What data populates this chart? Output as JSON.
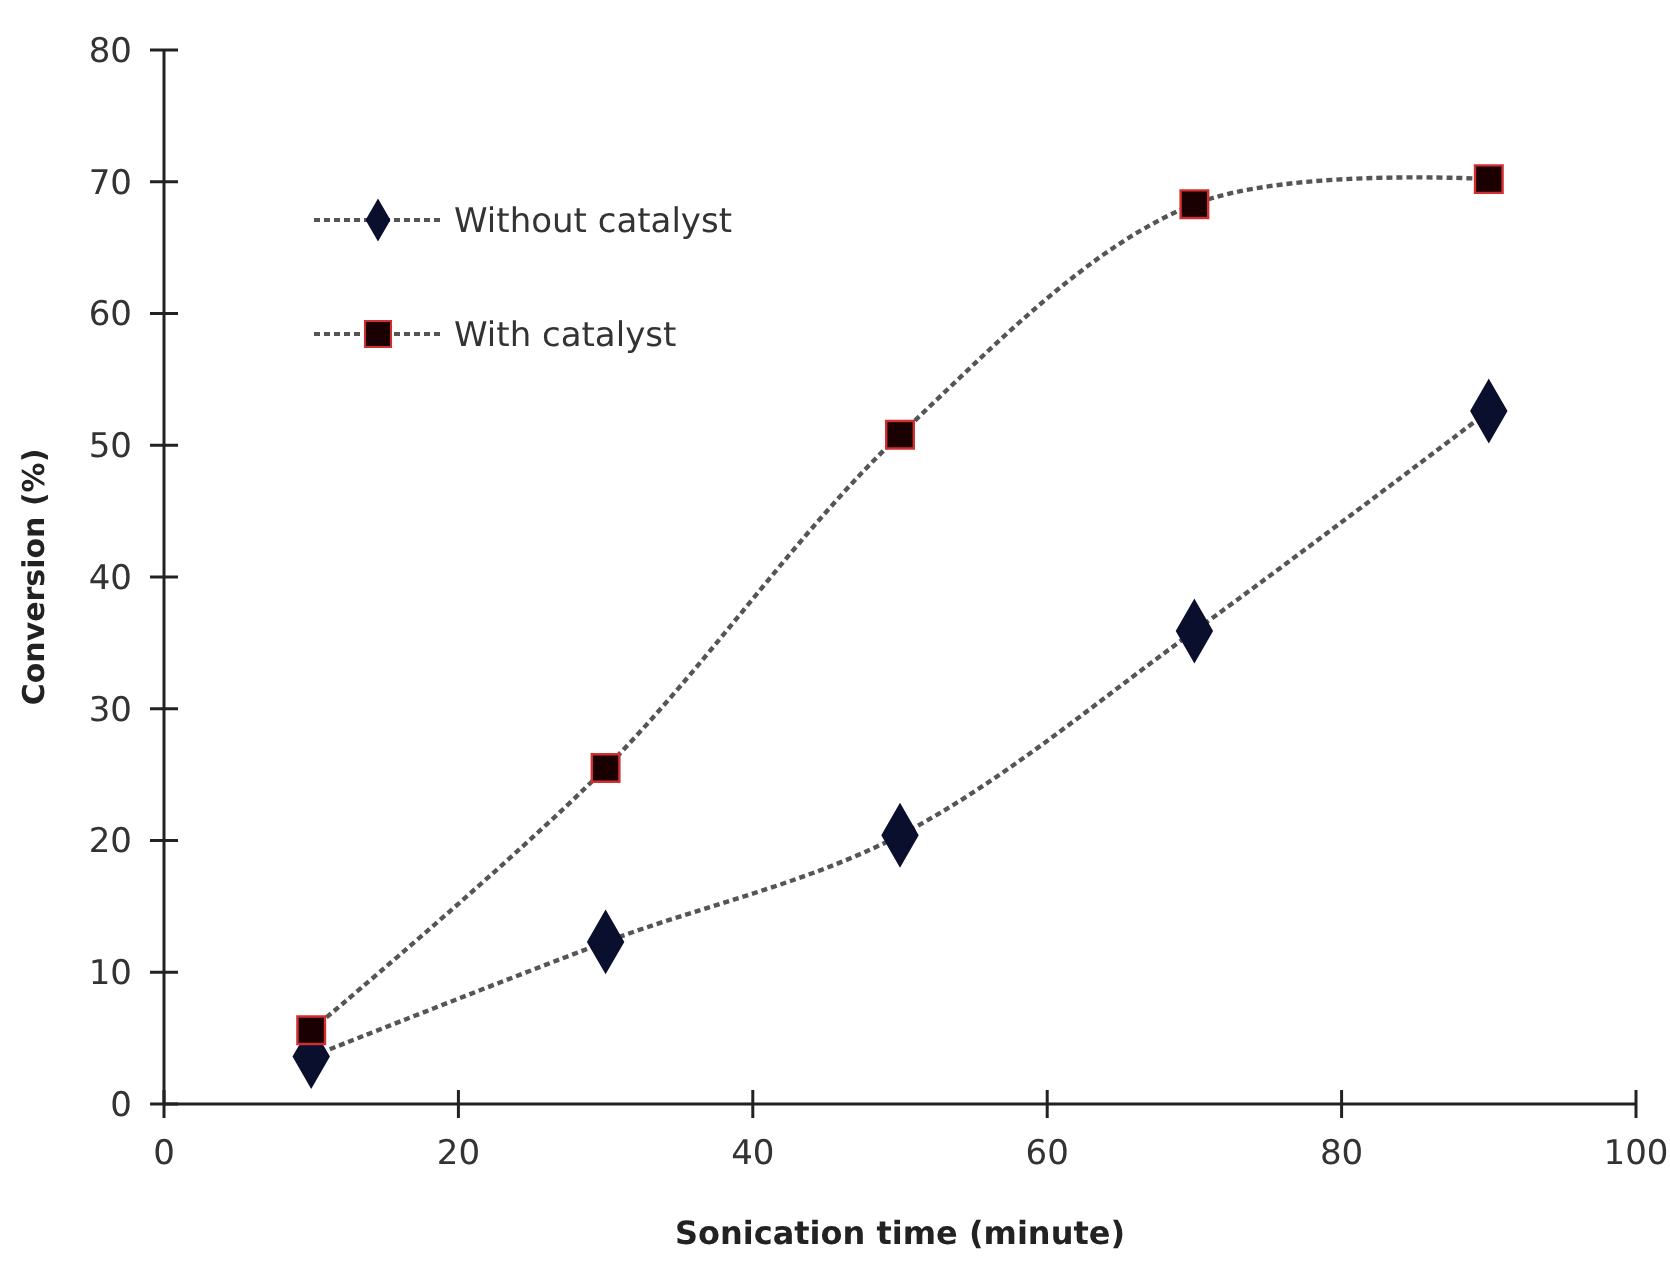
{
  "chart_data": {
    "type": "line",
    "xlabel": "Sonication time (minute)",
    "ylabel": "Conversion (%)",
    "x": [
      10,
      30,
      50,
      70,
      90
    ],
    "series": [
      {
        "name": "Without catalyst",
        "color": "#0a0f2e",
        "marker": "diamond",
        "values": [
          3.6,
          12.3,
          20.4,
          35.9,
          52.6
        ]
      },
      {
        "name": "With catalyst",
        "color": "#1a0000",
        "marker": "square",
        "values": [
          5.6,
          25.5,
          50.8,
          68.3,
          70.2
        ]
      }
    ],
    "xlim": [
      0,
      100
    ],
    "xticks": [
      0,
      20,
      40,
      60,
      80,
      100
    ],
    "ylim": [
      0,
      80
    ],
    "yticks": [
      0,
      10,
      20,
      30,
      40,
      50,
      60,
      70,
      80
    ],
    "grid": false,
    "legend": "top left",
    "line_style": "dotted"
  }
}
